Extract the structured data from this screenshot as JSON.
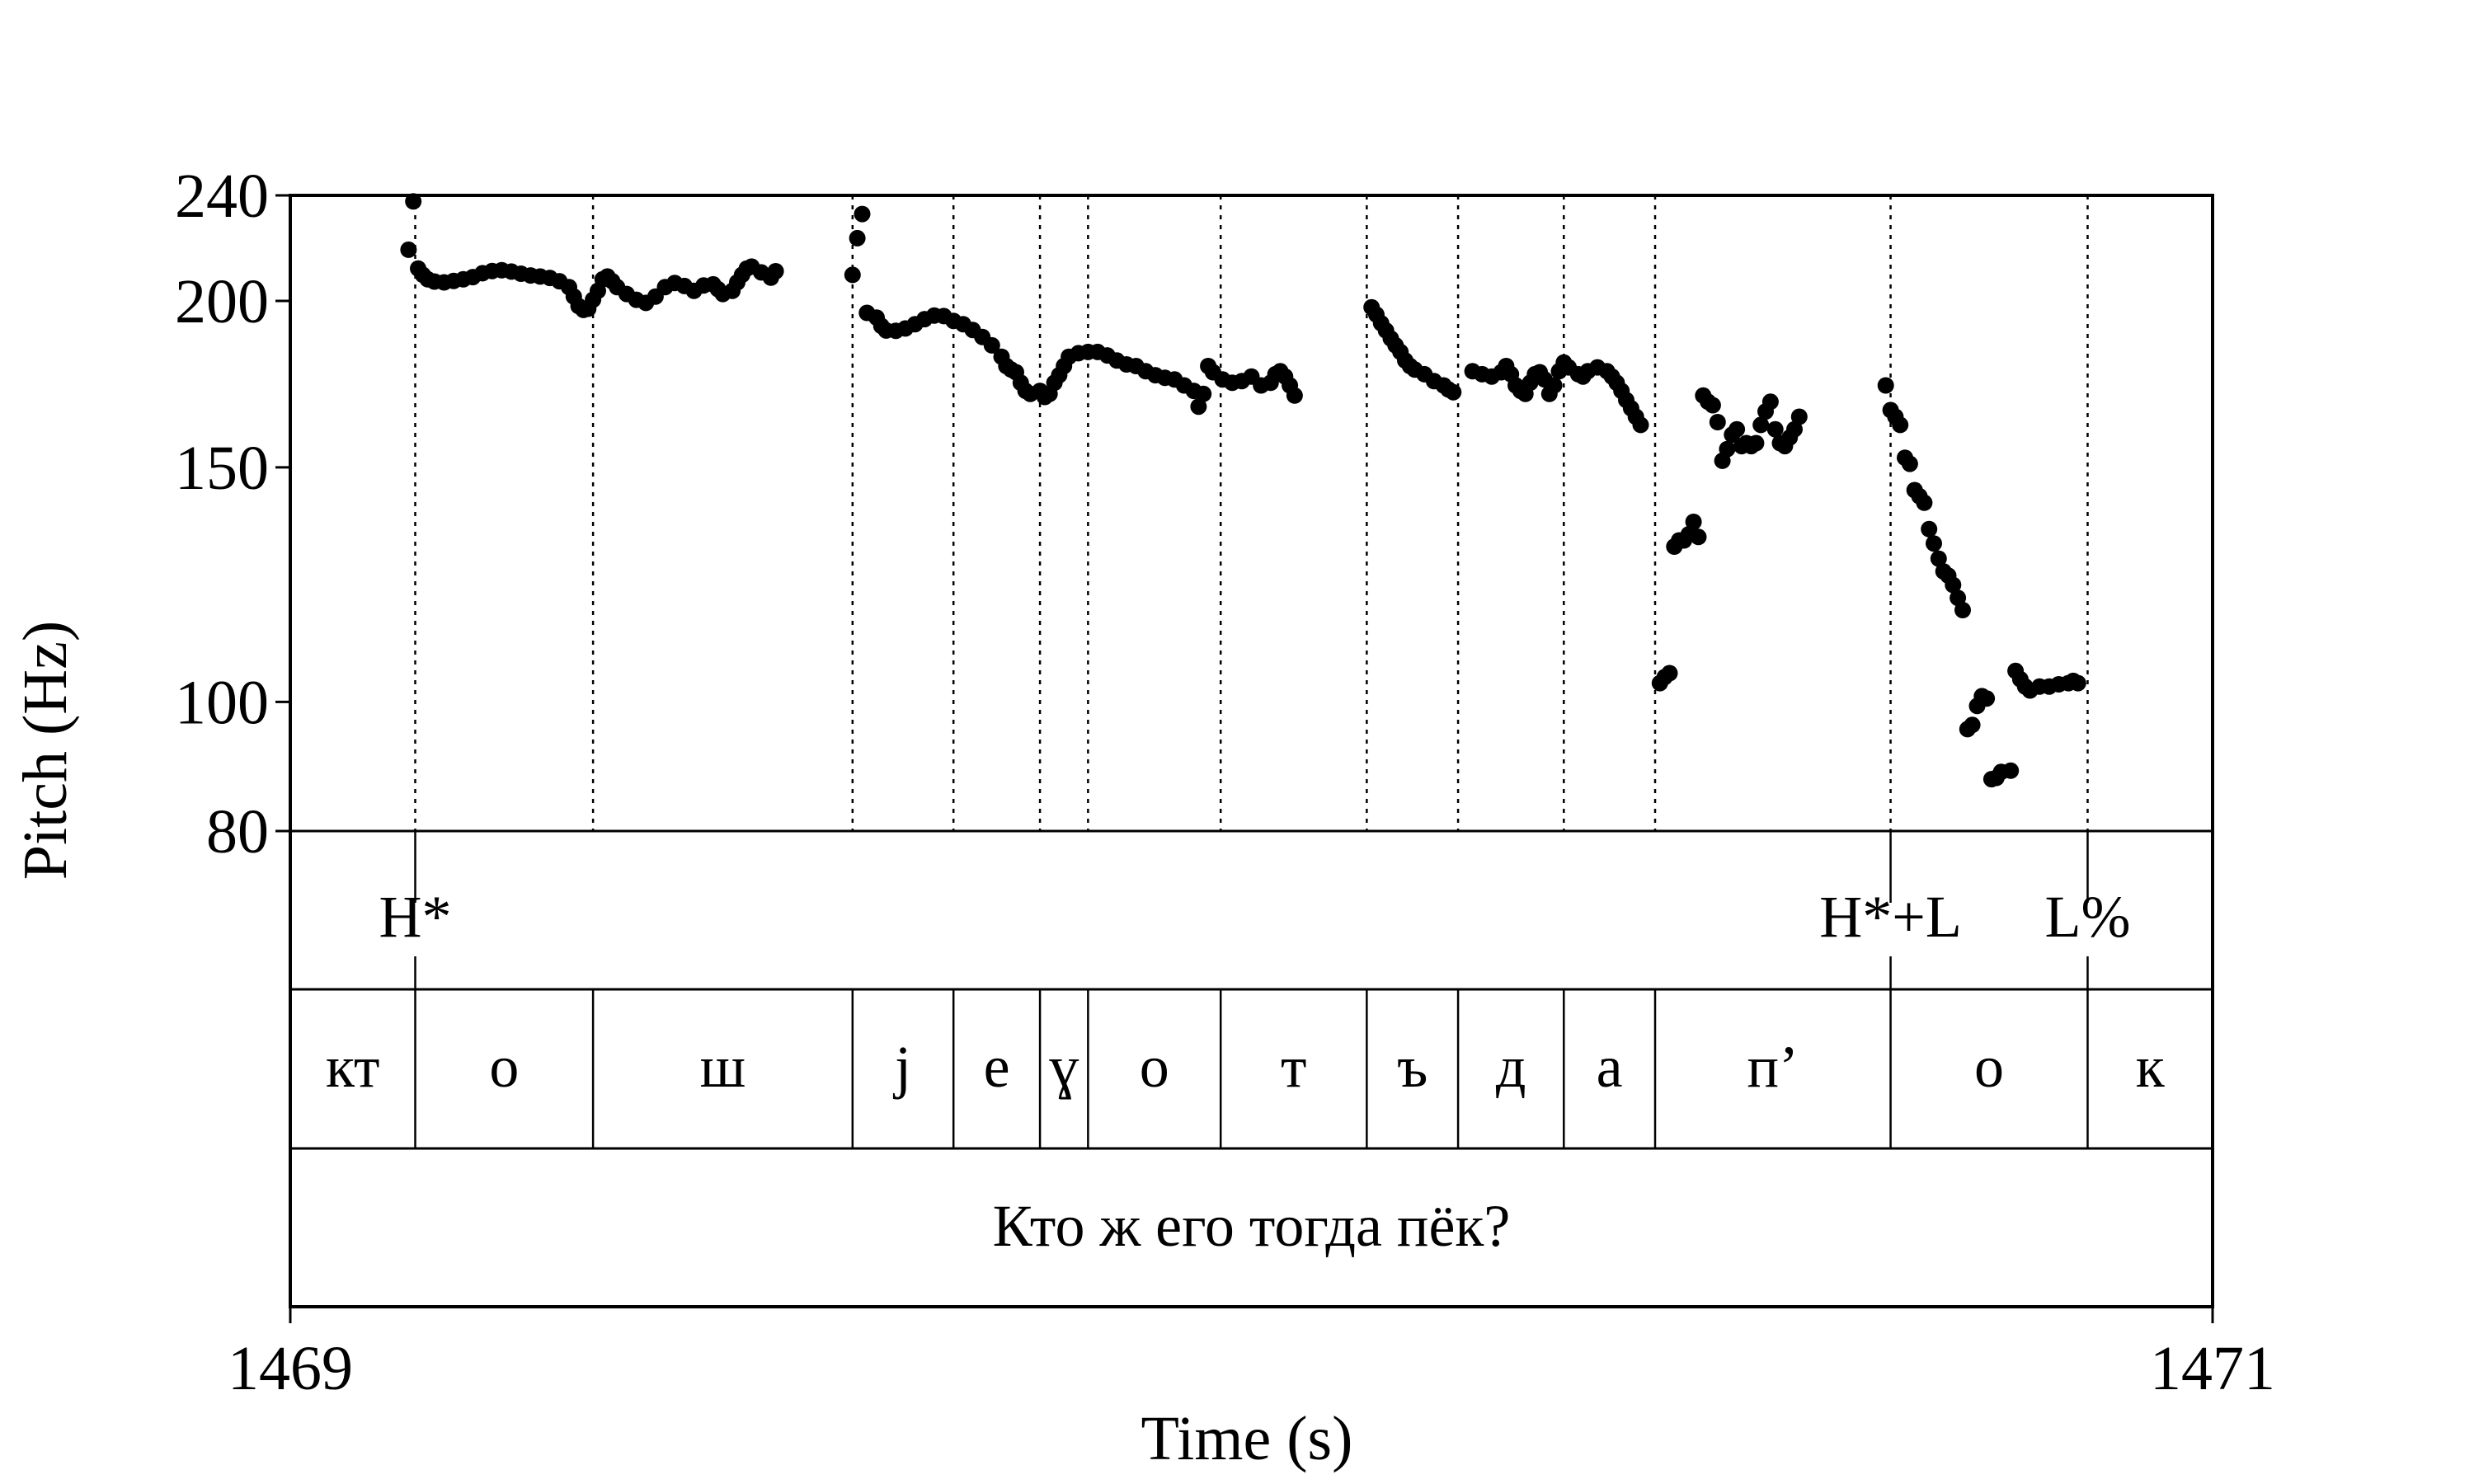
{
  "chart_data": {
    "type": "scatter",
    "title": "",
    "xlabel": "Time (s)",
    "ylabel": "Pitch (Hz)",
    "xlim": [
      1469,
      1471
    ],
    "ylim": [
      80,
      240
    ],
    "x_ticks": [
      "1469",
      "1471"
    ],
    "y_ticks": [
      {
        "value": 240,
        "label": "240"
      },
      {
        "value": 200,
        "label": "200"
      },
      {
        "value": 150,
        "label": "150"
      },
      {
        "value": 100,
        "label": "100"
      },
      {
        "value": 80,
        "label": "80"
      }
    ],
    "series": [
      {
        "values": [
          [
            1469.123,
            218.5
          ],
          [
            1469.128,
            237.5
          ],
          [
            1469.133,
            211.5
          ],
          [
            1469.138,
            209.2
          ],
          [
            1469.143,
            207.6
          ],
          [
            1469.15,
            206.8
          ],
          [
            1469.16,
            206.5
          ],
          [
            1469.17,
            207.0
          ],
          [
            1469.18,
            207.6
          ],
          [
            1469.19,
            208.4
          ],
          [
            1469.2,
            209.8
          ],
          [
            1469.21,
            210.6
          ],
          [
            1469.22,
            210.9
          ],
          [
            1469.23,
            210.4
          ],
          [
            1469.24,
            209.6
          ],
          [
            1469.25,
            209.0
          ],
          [
            1469.26,
            208.6
          ],
          [
            1469.27,
            208.1
          ],
          [
            1469.28,
            206.9
          ],
          [
            1469.29,
            204.8
          ],
          [
            1469.295,
            201.5
          ],
          [
            1469.3,
            198.2
          ],
          [
            1469.305,
            196.9
          ],
          [
            1469.31,
            197.3
          ],
          [
            1469.315,
            200.4
          ],
          [
            1469.32,
            203.5
          ],
          [
            1469.325,
            207.6
          ],
          [
            1469.33,
            208.6
          ],
          [
            1469.335,
            206.9
          ],
          [
            1469.34,
            204.8
          ],
          [
            1469.35,
            202.4
          ],
          [
            1469.36,
            200.4
          ],
          [
            1469.37,
            199.3
          ],
          [
            1469.38,
            201.5
          ],
          [
            1469.39,
            204.8
          ],
          [
            1469.4,
            206.3
          ],
          [
            1469.41,
            205.2
          ],
          [
            1469.42,
            203.5
          ],
          [
            1469.43,
            205.4
          ],
          [
            1469.44,
            205.8
          ],
          [
            1469.445,
            204.1
          ],
          [
            1469.45,
            202.4
          ],
          [
            1469.46,
            203.5
          ],
          [
            1469.465,
            206.5
          ],
          [
            1469.47,
            209.2
          ],
          [
            1469.475,
            211.5
          ],
          [
            1469.48,
            212.2
          ],
          [
            1469.49,
            210.1
          ],
          [
            1469.5,
            208.2
          ],
          [
            1469.505,
            210.5
          ],
          [
            1469.585,
            209.2
          ],
          [
            1469.59,
            222.9
          ],
          [
            1469.595,
            232.4
          ],
          [
            1469.6,
            195.9
          ],
          [
            1469.61,
            194.3
          ],
          [
            1469.615,
            191.5
          ],
          [
            1469.62,
            190.0
          ],
          [
            1469.63,
            189.9
          ],
          [
            1469.64,
            190.7
          ],
          [
            1469.65,
            192.1
          ],
          [
            1469.66,
            193.8
          ],
          [
            1469.67,
            195.0
          ],
          [
            1469.68,
            194.8
          ],
          [
            1469.69,
            193.2
          ],
          [
            1469.7,
            192.1
          ],
          [
            1469.71,
            190.2
          ],
          [
            1469.72,
            187.9
          ],
          [
            1469.73,
            185.2
          ],
          [
            1469.74,
            181.6
          ],
          [
            1469.745,
            178.7
          ],
          [
            1469.75,
            177.6
          ],
          [
            1469.755,
            176.8
          ],
          [
            1469.76,
            173.6
          ],
          [
            1469.765,
            171.2
          ],
          [
            1469.77,
            170.3
          ],
          [
            1469.78,
            171.2
          ],
          [
            1469.785,
            169.4
          ],
          [
            1469.79,
            170.3
          ],
          [
            1469.795,
            173.6
          ],
          [
            1469.8,
            175.9
          ],
          [
            1469.805,
            178.7
          ],
          [
            1469.81,
            181.6
          ],
          [
            1469.82,
            182.7
          ],
          [
            1469.83,
            183.1
          ],
          [
            1469.84,
            183.1
          ],
          [
            1469.85,
            182.0
          ],
          [
            1469.86,
            180.4
          ],
          [
            1469.87,
            179.2
          ],
          [
            1469.88,
            178.7
          ],
          [
            1469.89,
            177.1
          ],
          [
            1469.9,
            175.9
          ],
          [
            1469.91,
            175.1
          ],
          [
            1469.92,
            174.6
          ],
          [
            1469.93,
            172.8
          ],
          [
            1469.94,
            171.2
          ],
          [
            1469.945,
            166.6
          ],
          [
            1469.95,
            170.3
          ],
          [
            1469.955,
            178.7
          ],
          [
            1469.96,
            176.8
          ],
          [
            1469.97,
            174.6
          ],
          [
            1469.98,
            173.6
          ],
          [
            1469.99,
            174.1
          ],
          [
            1470.0,
            175.5
          ],
          [
            1470.01,
            172.8
          ],
          [
            1470.02,
            173.6
          ],
          [
            1470.025,
            176.2
          ],
          [
            1470.03,
            177.1
          ],
          [
            1470.035,
            175.5
          ],
          [
            1470.04,
            172.8
          ],
          [
            1470.045,
            169.8
          ],
          [
            1470.125,
            197.8
          ],
          [
            1470.13,
            195.3
          ],
          [
            1470.135,
            192.4
          ],
          [
            1470.14,
            190.0
          ],
          [
            1470.145,
            187.4
          ],
          [
            1470.15,
            185.2
          ],
          [
            1470.155,
            183.1
          ],
          [
            1470.16,
            180.4
          ],
          [
            1470.165,
            178.7
          ],
          [
            1470.17,
            177.6
          ],
          [
            1470.18,
            176.2
          ],
          [
            1470.19,
            174.1
          ],
          [
            1470.2,
            172.8
          ],
          [
            1470.205,
            171.6
          ],
          [
            1470.21,
            170.8
          ],
          [
            1470.23,
            177.1
          ],
          [
            1470.24,
            176.2
          ],
          [
            1470.25,
            175.5
          ],
          [
            1470.26,
            176.8
          ],
          [
            1470.265,
            178.7
          ],
          [
            1470.27,
            176.2
          ],
          [
            1470.275,
            172.8
          ],
          [
            1470.28,
            171.2
          ],
          [
            1470.285,
            170.3
          ],
          [
            1470.29,
            173.6
          ],
          [
            1470.295,
            176.2
          ],
          [
            1470.3,
            176.8
          ],
          [
            1470.305,
            174.6
          ],
          [
            1470.31,
            170.3
          ],
          [
            1470.315,
            172.8
          ],
          [
            1470.32,
            177.1
          ],
          [
            1470.325,
            179.8
          ],
          [
            1470.33,
            178.3
          ],
          [
            1470.34,
            176.2
          ],
          [
            1470.345,
            175.5
          ],
          [
            1470.35,
            177.1
          ],
          [
            1470.36,
            178.3
          ],
          [
            1470.37,
            177.1
          ],
          [
            1470.375,
            175.5
          ],
          [
            1470.38,
            173.6
          ],
          [
            1470.385,
            171.2
          ],
          [
            1470.39,
            168.5
          ],
          [
            1470.395,
            166.1
          ],
          [
            1470.4,
            163.7
          ],
          [
            1470.405,
            161.4
          ],
          [
            1470.425,
            103.3
          ],
          [
            1470.43,
            104.4
          ],
          [
            1470.435,
            105.1
          ],
          [
            1470.44,
            130.8
          ],
          [
            1470.445,
            132.2
          ],
          [
            1470.45,
            132.2
          ],
          [
            1470.455,
            133.6
          ],
          [
            1470.46,
            136.5
          ],
          [
            1470.465,
            133.0
          ],
          [
            1470.47,
            169.8
          ],
          [
            1470.475,
            168.0
          ],
          [
            1470.48,
            167.0
          ],
          [
            1470.485,
            162.2
          ],
          [
            1470.49,
            151.7
          ],
          [
            1470.495,
            154.8
          ],
          [
            1470.5,
            158.7
          ],
          [
            1470.505,
            160.2
          ],
          [
            1470.51,
            155.6
          ],
          [
            1470.515,
            156.4
          ],
          [
            1470.52,
            155.6
          ],
          [
            1470.525,
            156.4
          ],
          [
            1470.53,
            161.4
          ],
          [
            1470.535,
            165.2
          ],
          [
            1470.54,
            168.0
          ],
          [
            1470.545,
            160.2
          ],
          [
            1470.55,
            156.4
          ],
          [
            1470.555,
            155.6
          ],
          [
            1470.56,
            157.9
          ],
          [
            1470.565,
            160.2
          ],
          [
            1470.57,
            163.7
          ],
          [
            1470.66,
            172.8
          ],
          [
            1470.665,
            165.6
          ],
          [
            1470.67,
            163.7
          ],
          [
            1470.675,
            161.4
          ],
          [
            1470.68,
            152.5
          ],
          [
            1470.685,
            150.9
          ],
          [
            1470.69,
            144.2
          ],
          [
            1470.695,
            142.7
          ],
          [
            1470.7,
            141.1
          ],
          [
            1470.705,
            134.8
          ],
          [
            1470.71,
            131.5
          ],
          [
            1470.715,
            128.1
          ],
          [
            1470.72,
            125.3
          ],
          [
            1470.725,
            124.4
          ],
          [
            1470.73,
            122.4
          ],
          [
            1470.735,
            119.7
          ],
          [
            1470.74,
            117.2
          ],
          [
            1470.745,
            95.4
          ],
          [
            1470.75,
            96.1
          ],
          [
            1470.755,
            99.3
          ],
          [
            1470.76,
            101.0
          ],
          [
            1470.765,
            100.6
          ],
          [
            1470.77,
            87.5
          ],
          [
            1470.775,
            87.7
          ],
          [
            1470.78,
            88.6
          ],
          [
            1470.79,
            88.8
          ],
          [
            1470.795,
            105.5
          ],
          [
            1470.8,
            104.0
          ],
          [
            1470.805,
            102.7
          ],
          [
            1470.81,
            102.0
          ],
          [
            1470.82,
            102.7
          ],
          [
            1470.83,
            102.7
          ],
          [
            1470.84,
            103.1
          ],
          [
            1470.85,
            103.3
          ],
          [
            1470.855,
            103.7
          ],
          [
            1470.86,
            103.3
          ]
        ]
      }
    ],
    "log_scale_y": true,
    "grid": false,
    "boundaries": [
      1469.13,
      1469.315,
      1469.585,
      1469.69,
      1469.78,
      1469.83,
      1469.968,
      1470.12,
      1470.215,
      1470.325,
      1470.42,
      1470.665,
      1470.87
    ],
    "tone_tier": [
      {
        "label": "H*",
        "time": 1469.13
      },
      {
        "label": "H*+L",
        "time": 1470.665
      },
      {
        "label": "L%",
        "time": 1470.87
      }
    ],
    "segment_tier": [
      {
        "label": "кт",
        "start": 1469.0,
        "end": 1469.13
      },
      {
        "label": "о",
        "start": 1469.13,
        "end": 1469.315
      },
      {
        "label": "ш",
        "start": 1469.315,
        "end": 1469.585
      },
      {
        "label": "j",
        "start": 1469.585,
        "end": 1469.69
      },
      {
        "label": "е",
        "start": 1469.69,
        "end": 1469.78
      },
      {
        "label": "ɣ",
        "start": 1469.78,
        "end": 1469.83
      },
      {
        "label": "о",
        "start": 1469.83,
        "end": 1469.968
      },
      {
        "label": "т",
        "start": 1469.968,
        "end": 1470.12
      },
      {
        "label": "ъ",
        "start": 1470.12,
        "end": 1470.215
      },
      {
        "label": "д",
        "start": 1470.215,
        "end": 1470.325
      },
      {
        "label": "а",
        "start": 1470.325,
        "end": 1470.42
      },
      {
        "label": "п’",
        "start": 1470.42,
        "end": 1470.665
      },
      {
        "label": "о",
        "start": 1470.665,
        "end": 1470.87
      },
      {
        "label": "к",
        "start": 1470.87,
        "end": 1471.0
      }
    ],
    "sentence_tier": "Кто ж его тогда пёк?"
  }
}
